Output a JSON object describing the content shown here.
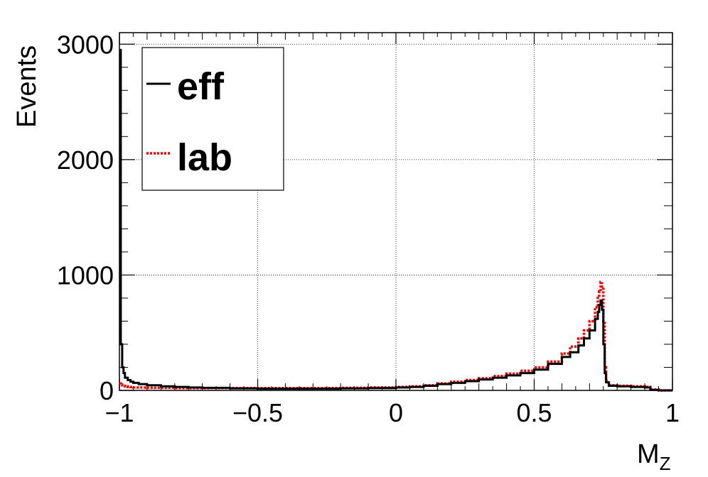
{
  "chart_data": {
    "type": "line",
    "title": "",
    "xlabel": "M",
    "xlabel_sub": "Z",
    "ylabel": "Events",
    "xlim": [
      -1,
      1
    ],
    "ylim": [
      0,
      3100
    ],
    "grid": true,
    "x_ticks": [
      -1,
      -0.5,
      0,
      0.5,
      1
    ],
    "x_tick_labels": [
      "−1",
      "−0.5",
      "0",
      "0.5",
      "1"
    ],
    "y_ticks": [
      0,
      1000,
      2000,
      3000
    ],
    "y_tick_labels": [
      "0",
      "1000",
      "2000",
      "3000"
    ],
    "legend_position": "top-left",
    "x": [
      -1.0,
      -0.995,
      -0.99,
      -0.985,
      -0.98,
      -0.97,
      -0.96,
      -0.95,
      -0.93,
      -0.9,
      -0.85,
      -0.8,
      -0.75,
      -0.7,
      -0.6,
      -0.5,
      -0.4,
      -0.3,
      -0.2,
      -0.1,
      0.0,
      0.05,
      0.1,
      0.15,
      0.2,
      0.25,
      0.3,
      0.35,
      0.4,
      0.45,
      0.5,
      0.55,
      0.6,
      0.63,
      0.66,
      0.68,
      0.7,
      0.72,
      0.73,
      0.735,
      0.74,
      0.745,
      0.75,
      0.755,
      0.76,
      0.77,
      0.8,
      0.85,
      0.9,
      0.92,
      0.95,
      1.0
    ],
    "series": [
      {
        "name": "eff",
        "color": "#000000",
        "style": "solid",
        "values": [
          2950,
          400,
          200,
          150,
          110,
          90,
          75,
          65,
          55,
          45,
          35,
          30,
          25,
          22,
          18,
          15,
          15,
          15,
          18,
          20,
          25,
          30,
          40,
          55,
          65,
          80,
          95,
          110,
          130,
          150,
          180,
          230,
          290,
          330,
          390,
          450,
          520,
          620,
          680,
          740,
          780,
          700,
          400,
          150,
          70,
          40,
          35,
          30,
          25,
          5,
          0,
          0
        ]
      },
      {
        "name": "lab",
        "color": "#ff0000",
        "style": "dotted",
        "values": [
          60,
          50,
          45,
          40,
          35,
          30,
          28,
          25,
          25,
          22,
          22,
          20,
          20,
          20,
          20,
          20,
          20,
          20,
          22,
          25,
          30,
          35,
          45,
          60,
          75,
          90,
          105,
          125,
          145,
          170,
          200,
          250,
          320,
          380,
          450,
          520,
          600,
          720,
          800,
          860,
          940,
          900,
          600,
          200,
          80,
          45,
          40,
          35,
          30,
          8,
          0,
          0
        ]
      }
    ]
  }
}
